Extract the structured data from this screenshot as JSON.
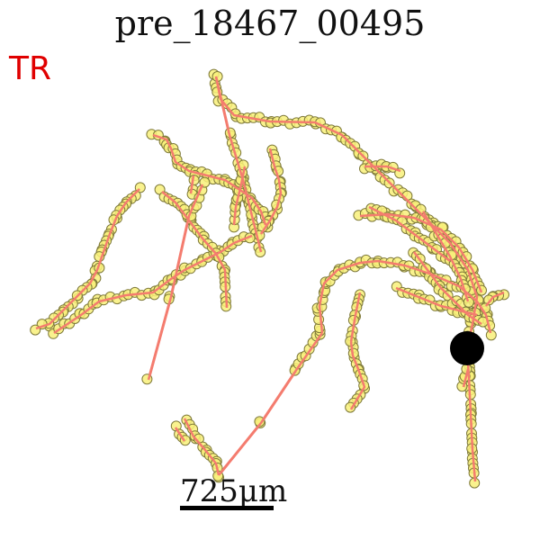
{
  "title": "pre_18467_00495",
  "corner_label": "TR",
  "scale_label": "725μm",
  "colors": {
    "trace": "#f47c6f",
    "node_fill": "#f8f07a",
    "node_stroke": "#7f7a3a",
    "soma": "#000000",
    "corner_label": "#e00000"
  }
}
